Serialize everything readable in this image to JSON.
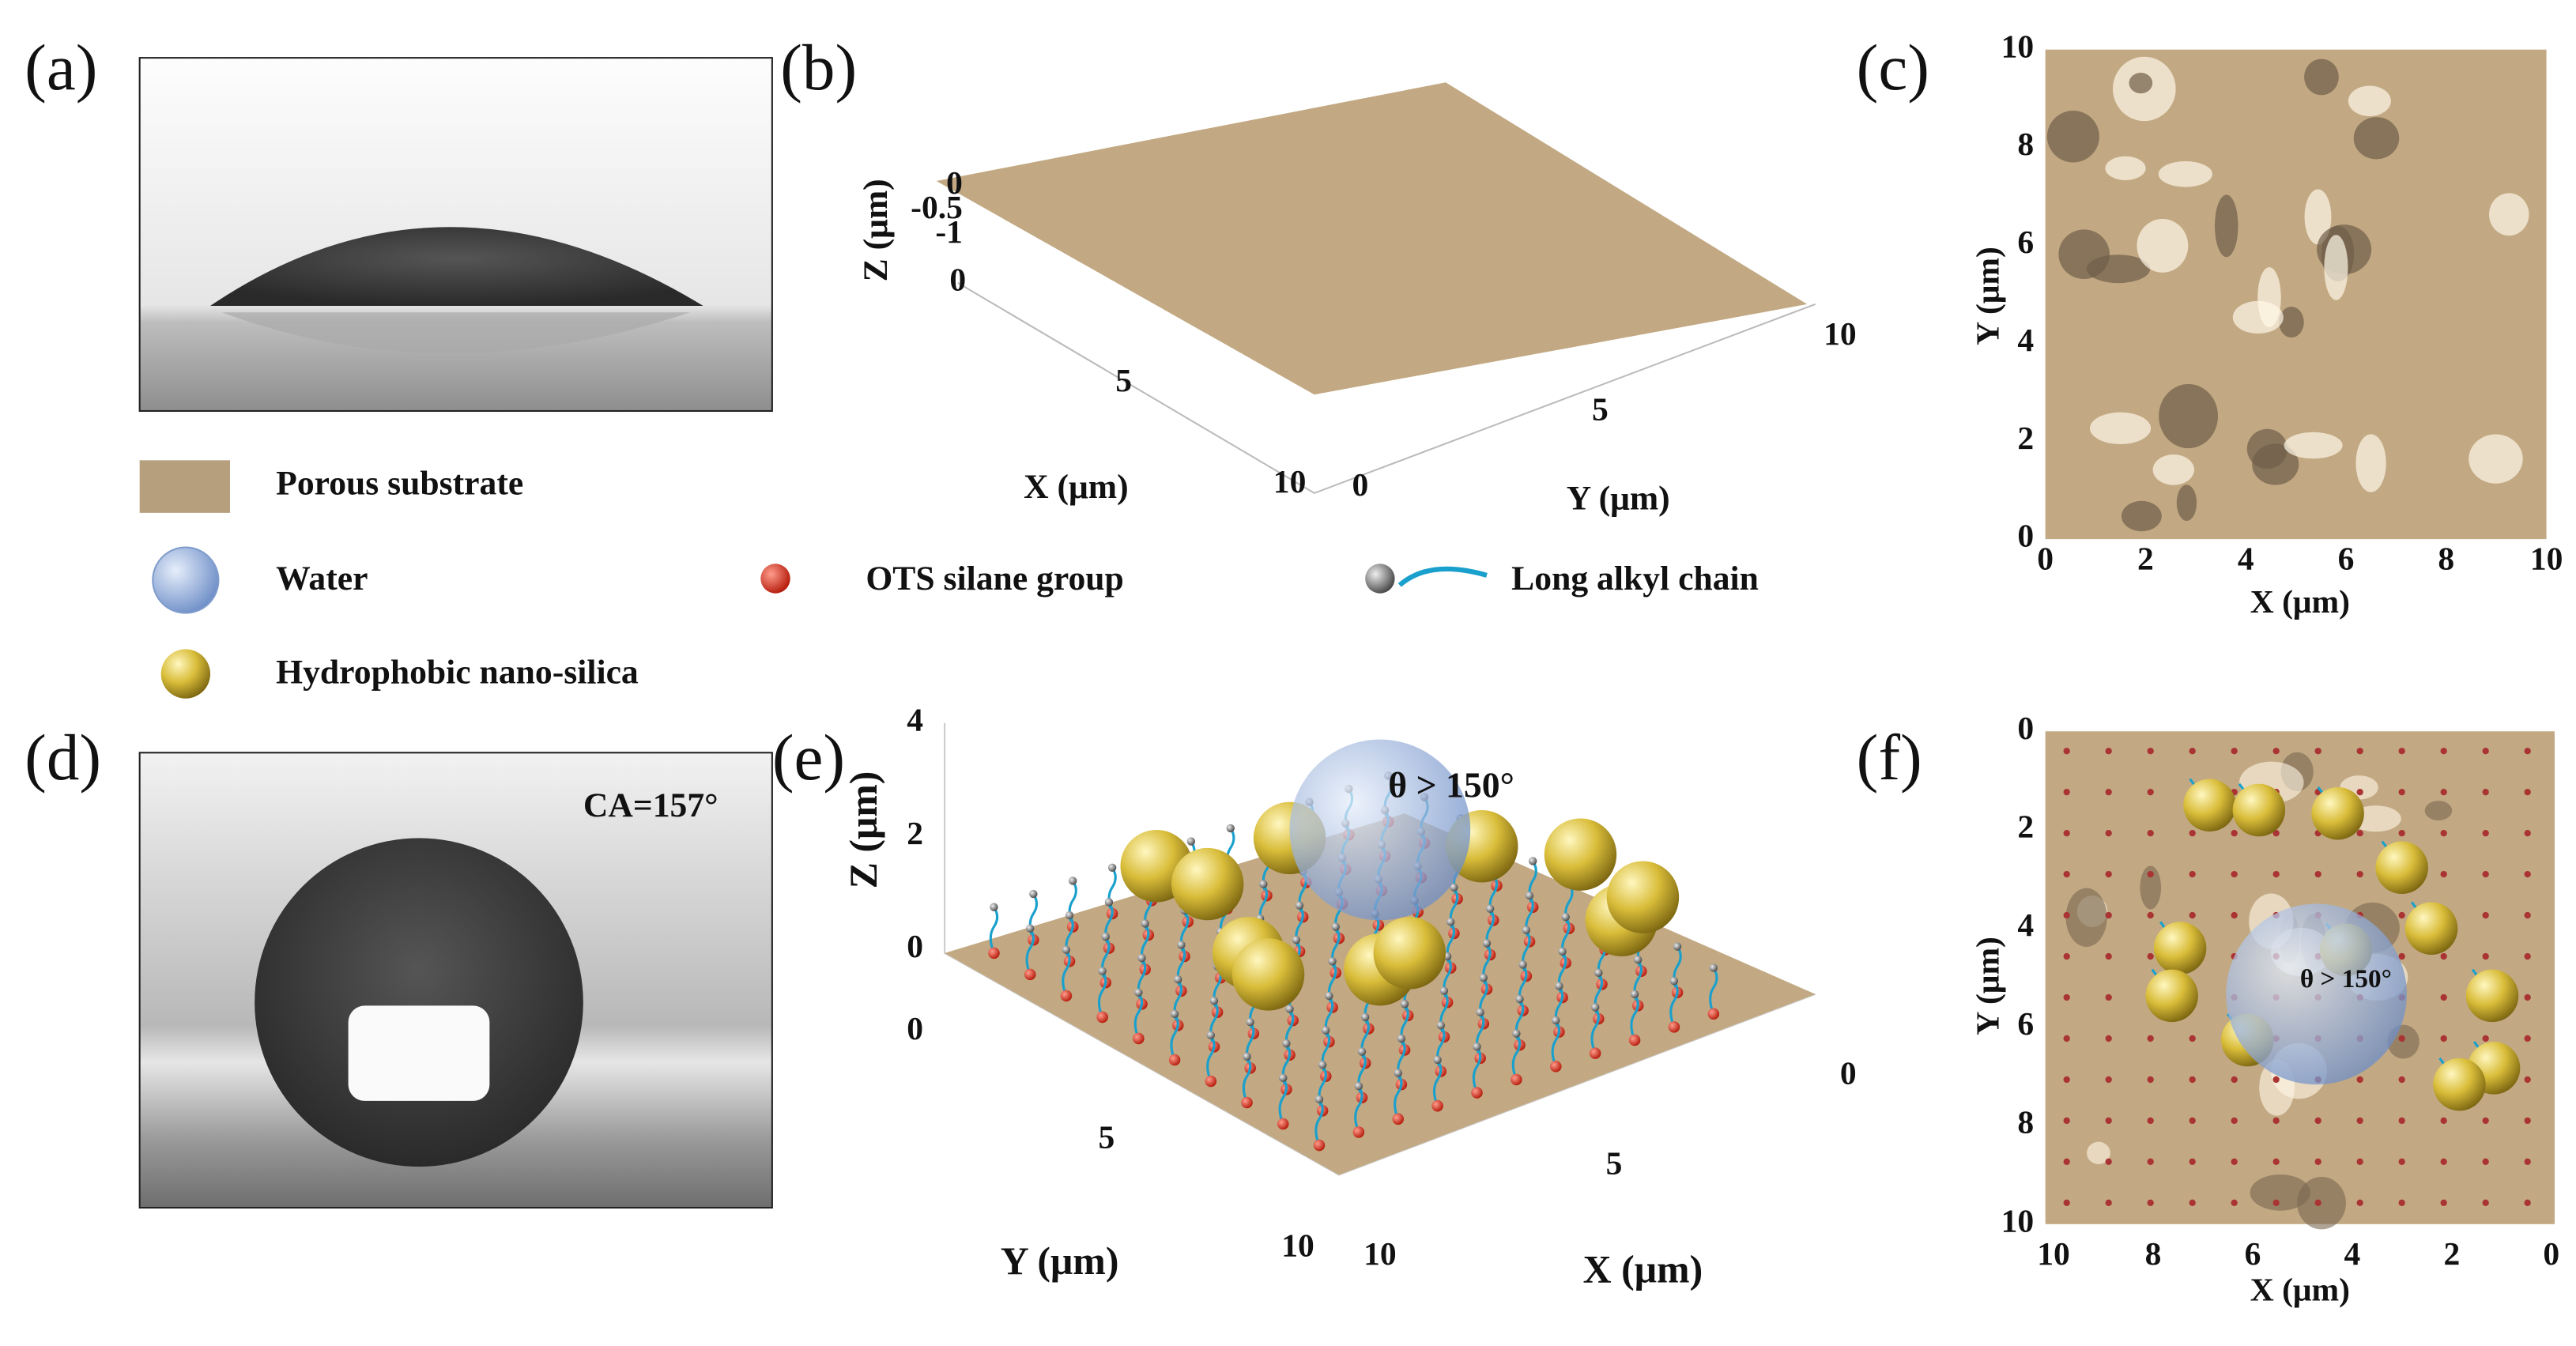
{
  "panels": {
    "a": {
      "label": "(a)"
    },
    "b": {
      "label": "(b)",
      "x_label": "X (μm)",
      "x_ticks": [
        0,
        5,
        10
      ],
      "y_label": "Y (μm)",
      "y_ticks": [
        0,
        5,
        10
      ],
      "z_label": "Z (μm)",
      "z_ticks": [
        0,
        -0.5,
        -1
      ]
    },
    "c": {
      "label": "(c)",
      "x_label": "X (μm)",
      "x_ticks": [
        0,
        2,
        4,
        6,
        8,
        10
      ],
      "y_label": "Y (μm)",
      "y_ticks": [
        0,
        2,
        4,
        6,
        8,
        10
      ]
    },
    "d": {
      "label": "(d)",
      "annotation": "CA=157°"
    },
    "e": {
      "label": "(e)",
      "annotation": "θ > 150°",
      "x_label": "X (μm)",
      "x_ticks": [
        0,
        5,
        10
      ],
      "y_label": "Y (μm)",
      "y_ticks": [
        0,
        5,
        10
      ],
      "z_label": "Z (μm)",
      "z_ticks": [
        0,
        2,
        4
      ]
    },
    "f": {
      "label": "(f)",
      "annotation": "θ > 150°",
      "x_label": "X (μm)",
      "x_ticks": [
        10,
        8,
        6,
        4,
        2,
        0
      ],
      "y_label": "Y (μm)",
      "y_ticks": [
        0,
        2,
        4,
        6,
        8,
        10
      ]
    }
  },
  "legend": {
    "items": [
      {
        "label": "Porous substrate"
      },
      {
        "label": "Water"
      },
      {
        "label": "OTS silane group"
      },
      {
        "label": "Long alkyl chain"
      },
      {
        "label": "Hydrophobic nano-silica"
      }
    ]
  }
}
